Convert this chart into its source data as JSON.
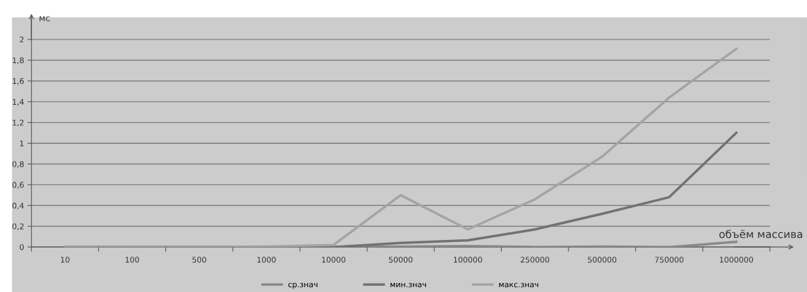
{
  "chart_data": {
    "type": "line",
    "xlabel": "объём массива",
    "ylabel": "мс",
    "categories": [
      "10",
      "100",
      "500",
      "1000",
      "10000",
      "50000",
      "100000",
      "250000",
      "500000",
      "750000",
      "1000000"
    ],
    "series": [
      {
        "name": "ср.знач",
        "color": "#8a8a8a",
        "values": [
          0,
          0,
          0,
          0,
          0,
          0.005,
          0.01,
          0,
          0.005,
          0,
          0.05
        ]
      },
      {
        "name": "мин.знач",
        "color": "#727272",
        "values": [
          0,
          0,
          0,
          0,
          0,
          0.04,
          0.065,
          0.17,
          0.32,
          0.48,
          1.1
        ]
      },
      {
        "name": "макс.знач",
        "color": "#a4a4a4",
        "values": [
          0,
          0,
          0,
          0.005,
          0.02,
          0.5,
          0.17,
          0.46,
          0.87,
          1.44,
          1.91
        ]
      }
    ],
    "ylim": [
      0,
      2.2
    ],
    "yticks": [
      0,
      {
        "value": 0.2,
        "label": "0,2"
      },
      {
        "value": 0.4,
        "label": "0,4"
      },
      {
        "value": 0.6,
        "label": "0,6"
      },
      {
        "value": 0.8,
        "label": "0,8"
      },
      1,
      {
        "value": 1.2,
        "label": "1,2"
      },
      {
        "value": 1.4,
        "label": "1,4"
      },
      {
        "value": 1.6,
        "label": "1,6"
      },
      {
        "value": 1.8,
        "label": "1,8"
      },
      2
    ],
    "ref_lines": [
      {
        "axis": "y",
        "value": 1,
        "color": "#555555",
        "line_style": "dotted"
      }
    ],
    "grid": "y",
    "legend": "bottom",
    "marker": "none",
    "line_style": "solid"
  }
}
